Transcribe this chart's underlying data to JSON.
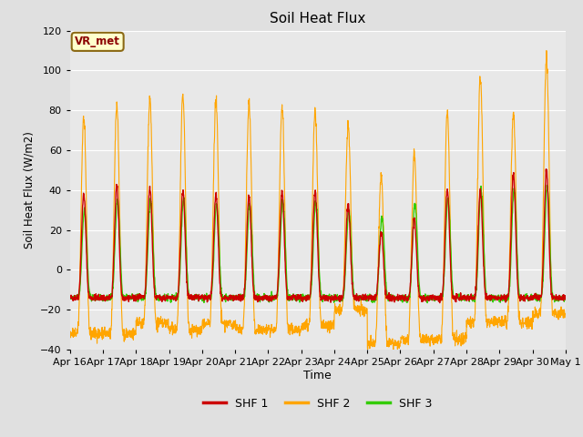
{
  "title": "Soil Heat Flux",
  "ylabel": "Soil Heat Flux (W/m2)",
  "xlabel": "Time",
  "legend_label": "VR_met",
  "series_labels": [
    "SHF 1",
    "SHF 2",
    "SHF 3"
  ],
  "series_colors": [
    "#cc0000",
    "#ffa500",
    "#33cc00"
  ],
  "ylim": [
    -40,
    120
  ],
  "x_tick_labels": [
    "Apr 16",
    "Apr 17",
    "Apr 18",
    "Apr 19",
    "Apr 20",
    "Apr 21",
    "Apr 22",
    "Apr 23",
    "Apr 24",
    "Apr 25",
    "Apr 26",
    "Apr 27",
    "Apr 28",
    "Apr 29",
    "Apr 30",
    "May 1"
  ],
  "background_color": "#e0e0e0",
  "plot_bg_color": "#e8e8e8",
  "grid_color": "#ffffff",
  "n_days": 15,
  "pts_per_day": 144,
  "day_amps1": [
    38,
    42,
    41,
    40,
    38,
    37,
    39,
    40,
    33,
    19,
    26,
    40,
    40,
    48,
    50
  ],
  "day_amps2": [
    76,
    83,
    86,
    87,
    85,
    84,
    82,
    80,
    72,
    47,
    58,
    79,
    97,
    79,
    106
  ],
  "day_amps3": [
    30,
    35,
    35,
    35,
    33,
    33,
    35,
    34,
    30,
    26,
    33,
    36,
    40,
    40,
    42
  ],
  "day_night1": [
    -14,
    -14,
    -14,
    -14,
    -14,
    -14,
    -14,
    -14,
    -14,
    -14,
    -14,
    -14,
    -14,
    -14,
    -14
  ],
  "day_night2": [
    -32,
    -32,
    -27,
    -30,
    -27,
    -30,
    -30,
    -28,
    -20,
    -37,
    -35,
    -35,
    -26,
    -26,
    -22
  ],
  "day_night3": [
    -14,
    -14,
    -14,
    -14,
    -14,
    -14,
    -14,
    -14,
    -14,
    -14,
    -14,
    -14,
    -14,
    -14,
    -14
  ]
}
